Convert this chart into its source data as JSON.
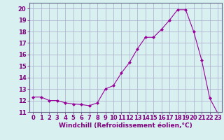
{
  "x": [
    0,
    1,
    2,
    3,
    4,
    5,
    6,
    7,
    8,
    9,
    10,
    11,
    12,
    13,
    14,
    15,
    16,
    17,
    18,
    19,
    20,
    21,
    22,
    23
  ],
  "y": [
    12.3,
    12.3,
    12.0,
    12.0,
    11.8,
    11.7,
    11.65,
    11.55,
    11.8,
    13.0,
    13.3,
    14.4,
    15.3,
    16.5,
    17.5,
    17.5,
    18.2,
    19.0,
    19.9,
    19.9,
    18.0,
    15.5,
    12.2,
    10.9
  ],
  "line_color": "#990099",
  "marker": "D",
  "marker_size": 2,
  "bg_color": "#d8f0f0",
  "grid_color": "#aaaacc",
  "xlabel": "Windchill (Refroidissement éolien,°C)",
  "xlabel_color": "#800080",
  "tick_color": "#800080",
  "spine_color": "#666688",
  "ylim": [
    11,
    20.5
  ],
  "xlim": [
    -0.5,
    23.5
  ],
  "yticks": [
    11,
    12,
    13,
    14,
    15,
    16,
    17,
    18,
    19,
    20
  ],
  "xticks": [
    0,
    1,
    2,
    3,
    4,
    5,
    6,
    7,
    8,
    9,
    10,
    11,
    12,
    13,
    14,
    15,
    16,
    17,
    18,
    19,
    20,
    21,
    22,
    23
  ],
  "label_fontsize": 6.5,
  "tick_fontsize": 6.0
}
